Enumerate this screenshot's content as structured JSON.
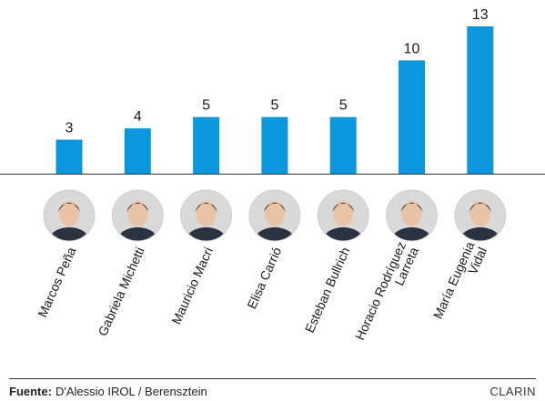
{
  "chart_data": {
    "type": "bar",
    "categories": [
      [
        "Marcos Peña"
      ],
      [
        "Gabriela Michetti"
      ],
      [
        "Mauricio Macri"
      ],
      [
        "Elisa Carrió"
      ],
      [
        "Esteban Bullrich"
      ],
      [
        "Horacio Rodríguez",
        "Larreta"
      ],
      [
        "María Eugenia",
        "Vidal"
      ]
    ],
    "values": [
      3,
      4,
      5,
      5,
      5,
      10,
      13
    ],
    "value_labels": [
      "3",
      "4",
      "5",
      "5",
      "5",
      "10",
      "13"
    ],
    "ylim": [
      0,
      13
    ],
    "bar_color": "#0a97dd",
    "grid": false,
    "baseline": true,
    "title": "",
    "xlabel": "",
    "ylabel": ""
  },
  "portrait_colors": {
    "background": "#d9d9d9",
    "skin": "#e8c3a6",
    "hair": "#3a2b22",
    "suit": "#2c3340"
  },
  "footer": {
    "source_label": "Fuente:",
    "source_text": "D'Alessio IROL / Berensztein",
    "brand": "CLARIN"
  }
}
